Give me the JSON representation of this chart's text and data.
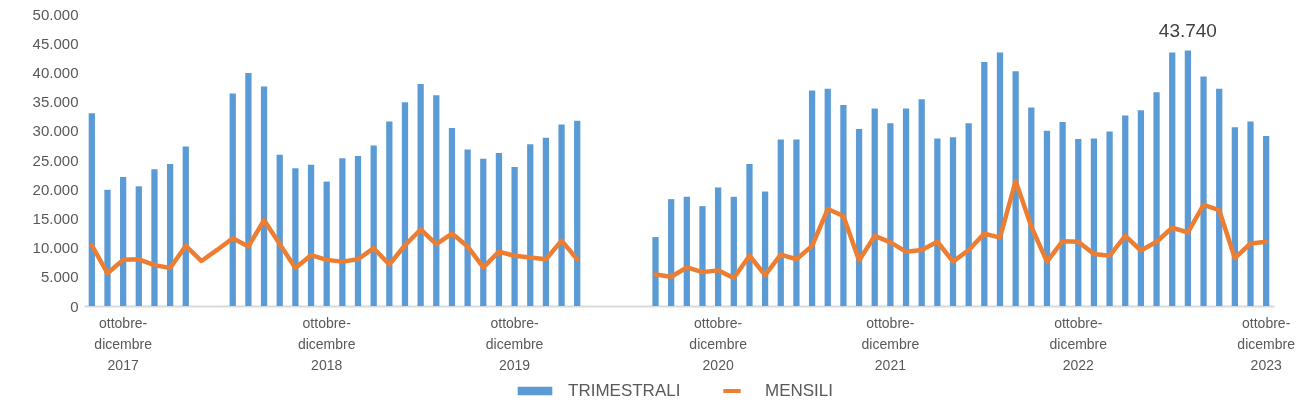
{
  "chart_data": {
    "type": "bar",
    "categories": [
      null,
      null,
      "ottobre-dicembre 2017",
      null,
      null,
      null,
      null,
      null,
      null,
      null,
      null,
      null,
      null,
      null,
      null,
      "ottobre-dicembre 2018",
      null,
      null,
      null,
      null,
      null,
      null,
      null,
      null,
      null,
      null,
      null,
      "ottobre-dicembre 2019",
      null,
      null,
      null,
      null,
      null,
      null,
      null,
      null,
      null,
      null,
      null,
      null,
      "ottobre-dicembre 2020",
      null,
      null,
      null,
      null,
      null,
      null,
      null,
      null,
      null,
      null,
      "ottobre-dicembre 2021",
      null,
      null,
      null,
      null,
      null,
      null,
      null,
      null,
      null,
      null,
      null,
      "ottobre-dicembre 2022",
      null,
      null,
      null,
      null,
      null,
      null,
      null,
      null,
      null,
      null,
      null,
      "ottobre-dicembre 2023"
    ],
    "series": [
      {
        "name": "TRIMESTRALI",
        "color": "#5b9bd5",
        "values": [
          33000,
          19900,
          22100,
          20500,
          23400,
          24300,
          27300,
          null,
          null,
          36400,
          39900,
          37600,
          25900,
          23600,
          24200,
          21300,
          25300,
          25700,
          27500,
          31600,
          34900,
          38000,
          36100,
          30500,
          26800,
          25200,
          26200,
          23800,
          27700,
          28800,
          31100,
          31700,
          null,
          null,
          null,
          null,
          11800,
          18300,
          18700,
          17100,
          20300,
          18700,
          24300,
          19600,
          28500,
          28500,
          36900,
          37200,
          34400,
          30300,
          33800,
          31300,
          33800,
          35400,
          28700,
          28900,
          31300,
          41800,
          43400,
          40200,
          34000,
          30000,
          31500,
          28600,
          28700,
          29900,
          32600,
          33500,
          36600,
          43400,
          43740,
          39300,
          37200,
          30600,
          31600,
          29100
        ],
        "value_labels": [
          null,
          null,
          null,
          null,
          null,
          null,
          null,
          null,
          null,
          null,
          null,
          null,
          null,
          null,
          null,
          null,
          null,
          null,
          null,
          null,
          null,
          null,
          null,
          null,
          null,
          null,
          null,
          null,
          null,
          null,
          null,
          null,
          null,
          null,
          null,
          null,
          null,
          null,
          null,
          null,
          null,
          null,
          null,
          null,
          null,
          null,
          null,
          null,
          null,
          null,
          null,
          null,
          null,
          null,
          null,
          null,
          null,
          null,
          null,
          null,
          null,
          null,
          null,
          null,
          null,
          null,
          null,
          null,
          null,
          null,
          "43.740",
          null,
          null,
          null,
          null,
          null
        ]
      },
      {
        "name": "MENSILI",
        "type": "line",
        "color": "#ed7d31",
        "values": [
          10400,
          5600,
          7900,
          8000,
          7000,
          6500,
          10300,
          7700,
          9600,
          11600,
          10200,
          14700,
          10600,
          6500,
          8700,
          7900,
          7600,
          8000,
          9900,
          7100,
          10400,
          13100,
          10600,
          12400,
          10200,
          6600,
          9300,
          8600,
          8300,
          8000,
          11200,
          8000,
          null,
          null,
          null,
          null,
          5400,
          5000,
          6600,
          5800,
          6100,
          4800,
          8600,
          5300,
          8800,
          8000,
          10300,
          16600,
          15400,
          7800,
          12000,
          10900,
          9300,
          9600,
          11000,
          7600,
          9600,
          12400,
          11700,
          21400,
          13600,
          7600,
          11100,
          11000,
          8900,
          8600,
          12000,
          9500,
          11000,
          13400,
          12600,
          17300,
          16400,
          8200,
          10700,
          11000
        ]
      }
    ],
    "ylim": [
      0,
      50000
    ],
    "yticks": [
      {
        "value": 0,
        "label": "0"
      },
      {
        "value": 5000,
        "label": "5.000"
      },
      {
        "value": 10000,
        "label": "10.000"
      },
      {
        "value": 15000,
        "label": "15.000"
      },
      {
        "value": 20000,
        "label": "20.000"
      },
      {
        "value": 25000,
        "label": "25.000"
      },
      {
        "value": 30000,
        "label": "30.000"
      },
      {
        "value": 35000,
        "label": "35.000"
      },
      {
        "value": 40000,
        "label": "40.000"
      },
      {
        "value": 45000,
        "label": "45.000"
      },
      {
        "value": 50000,
        "label": "50.000"
      }
    ],
    "legend": "bottom"
  }
}
